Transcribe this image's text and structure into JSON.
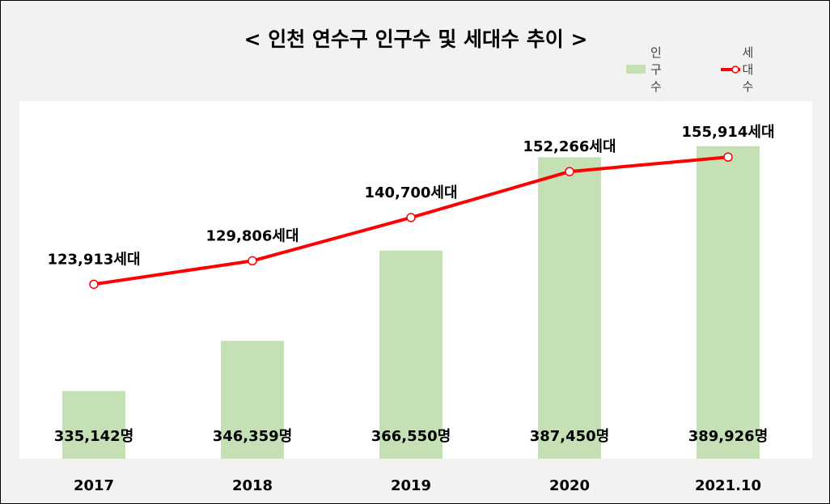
{
  "chart": {
    "title": "< 인천 연수구 인구수 및 세대수 추이 >",
    "legend": {
      "bar_label": "인구수",
      "line_label": "세대수"
    }
  },
  "colors": {
    "bar": "#c5e0b4",
    "line": "#ff0000",
    "marker_fill": "#ffffff",
    "background": "#f2f2f2",
    "plot_background": "#ffffff"
  },
  "chart_data": {
    "type": "bar",
    "title": "< 인천 연수구 인구수 및 세대수 추이 >",
    "categories": [
      "2017",
      "2018",
      "2019",
      "2020",
      "2021.10"
    ],
    "series": [
      {
        "name": "인구수",
        "type": "bar",
        "values": [
          335142,
          346359,
          366550,
          387450,
          389926
        ],
        "labels": [
          "335,142명",
          "346,359명",
          "366,550명",
          "387,450명",
          "389,926명"
        ],
        "ylim": [
          320000,
          400000
        ]
      },
      {
        "name": "세대수",
        "type": "line",
        "values": [
          123913,
          129806,
          140700,
          152266,
          155914
        ],
        "labels": [
          "123,913세대",
          "129,806세대",
          "140,700세대",
          "152,266세대",
          "155,914세대"
        ],
        "ylim": [
          80000,
          170000
        ]
      }
    ],
    "legend_position": "top-right",
    "grid": false,
    "xlabel": "",
    "ylabel": ""
  }
}
